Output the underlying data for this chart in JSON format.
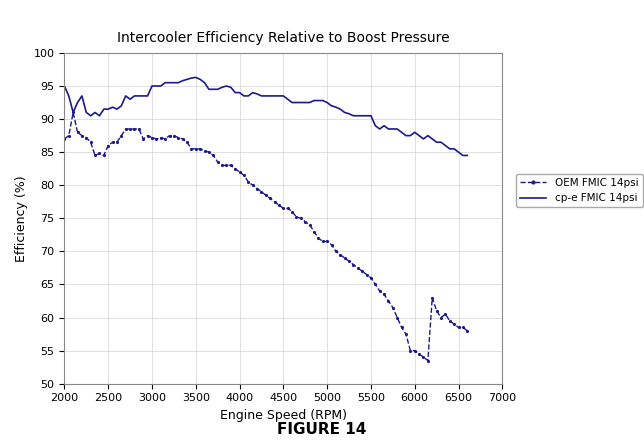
{
  "title": "Intercooler Efficiency Relative to Boost Pressure",
  "xlabel": "Engine Speed (RPM)",
  "ylabel": "Efficiency (%)",
  "figure_label": "FIGURE 14",
  "xlim": [
    2000,
    7000
  ],
  "ylim": [
    50,
    100
  ],
  "xticks": [
    2000,
    2500,
    3000,
    3500,
    4000,
    4500,
    5000,
    5500,
    6000,
    6500,
    7000
  ],
  "yticks": [
    50,
    55,
    60,
    65,
    70,
    75,
    80,
    85,
    90,
    95,
    100
  ],
  "color": "#1a1a8c",
  "legend_labels": [
    "OEM FMIC 14psi",
    "cp-e FMIC 14psi"
  ],
  "oem_x": [
    2000,
    2050,
    2100,
    2150,
    2200,
    2250,
    2300,
    2350,
    2400,
    2450,
    2500,
    2550,
    2600,
    2650,
    2700,
    2750,
    2800,
    2850,
    2900,
    2950,
    3000,
    3050,
    3100,
    3150,
    3200,
    3250,
    3300,
    3350,
    3400,
    3450,
    3500,
    3550,
    3600,
    3650,
    3700,
    3750,
    3800,
    3850,
    3900,
    3950,
    4000,
    4050,
    4100,
    4150,
    4200,
    4250,
    4300,
    4350,
    4400,
    4450,
    4500,
    4550,
    4600,
    4650,
    4700,
    4750,
    4800,
    4850,
    4900,
    4950,
    5000,
    5050,
    5100,
    5150,
    5200,
    5250,
    5300,
    5350,
    5400,
    5450,
    5500,
    5550,
    5600,
    5650,
    5700,
    5750,
    5800,
    5850,
    5900,
    5950,
    6000,
    6050,
    6100,
    6150,
    6200,
    6250,
    6300,
    6350,
    6400,
    6450,
    6500,
    6550,
    6600
  ],
  "oem_y": [
    87.0,
    87.5,
    91.0,
    88.0,
    87.5,
    87.2,
    86.5,
    84.5,
    84.8,
    84.5,
    86.0,
    86.5,
    86.5,
    87.5,
    88.5,
    88.5,
    88.5,
    88.5,
    87.0,
    87.5,
    87.2,
    87.0,
    87.2,
    87.0,
    87.5,
    87.5,
    87.2,
    87.0,
    86.5,
    85.5,
    85.5,
    85.5,
    85.2,
    85.0,
    84.5,
    83.5,
    83.0,
    83.0,
    83.0,
    82.5,
    82.0,
    81.5,
    80.5,
    80.0,
    79.5,
    79.0,
    78.5,
    78.0,
    77.5,
    77.0,
    76.5,
    76.5,
    76.0,
    75.2,
    75.0,
    74.5,
    74.0,
    73.0,
    72.0,
    71.5,
    71.5,
    71.0,
    70.0,
    69.5,
    69.0,
    68.5,
    68.0,
    67.5,
    67.0,
    66.5,
    66.0,
    65.0,
    64.0,
    63.5,
    62.5,
    61.5,
    60.0,
    58.5,
    57.5,
    55.0,
    55.0,
    54.5,
    54.0,
    53.5,
    63.0,
    61.0,
    60.0,
    60.5,
    59.5,
    59.0,
    58.5,
    58.5,
    58.0
  ],
  "cpe_x": [
    2000,
    2050,
    2100,
    2150,
    2200,
    2250,
    2300,
    2350,
    2400,
    2450,
    2500,
    2550,
    2600,
    2650,
    2700,
    2750,
    2800,
    2850,
    2900,
    2950,
    3000,
    3050,
    3100,
    3150,
    3200,
    3250,
    3300,
    3350,
    3400,
    3450,
    3500,
    3550,
    3600,
    3650,
    3700,
    3750,
    3800,
    3850,
    3900,
    3950,
    4000,
    4050,
    4100,
    4150,
    4200,
    4250,
    4300,
    4350,
    4400,
    4450,
    4500,
    4550,
    4600,
    4650,
    4700,
    4750,
    4800,
    4850,
    4900,
    4950,
    5000,
    5050,
    5100,
    5150,
    5200,
    5250,
    5300,
    5350,
    5400,
    5450,
    5500,
    5550,
    5600,
    5650,
    5700,
    5750,
    5800,
    5850,
    5900,
    5950,
    6000,
    6050,
    6100,
    6150,
    6200,
    6250,
    6300,
    6350,
    6400,
    6450,
    6500,
    6550,
    6600
  ],
  "cpe_y": [
    95.0,
    93.5,
    91.0,
    92.5,
    93.5,
    91.0,
    90.5,
    91.0,
    90.5,
    91.5,
    91.5,
    91.8,
    91.5,
    92.0,
    93.5,
    93.0,
    93.5,
    93.5,
    93.5,
    93.5,
    95.0,
    95.0,
    95.0,
    95.5,
    95.5,
    95.5,
    95.5,
    95.8,
    96.0,
    96.2,
    96.3,
    96.0,
    95.5,
    94.5,
    94.5,
    94.5,
    94.8,
    95.0,
    94.8,
    94.0,
    94.0,
    93.5,
    93.5,
    94.0,
    93.8,
    93.5,
    93.5,
    93.5,
    93.5,
    93.5,
    93.5,
    93.0,
    92.5,
    92.5,
    92.5,
    92.5,
    92.5,
    92.8,
    92.8,
    92.8,
    92.5,
    92.0,
    91.8,
    91.5,
    91.0,
    90.8,
    90.5,
    90.5,
    90.5,
    90.5,
    90.5,
    89.0,
    88.5,
    89.0,
    88.5,
    88.5,
    88.5,
    88.0,
    87.5,
    87.5,
    88.0,
    87.5,
    87.0,
    87.5,
    87.0,
    86.5,
    86.5,
    86.0,
    85.5,
    85.5,
    85.0,
    84.5,
    84.5
  ]
}
